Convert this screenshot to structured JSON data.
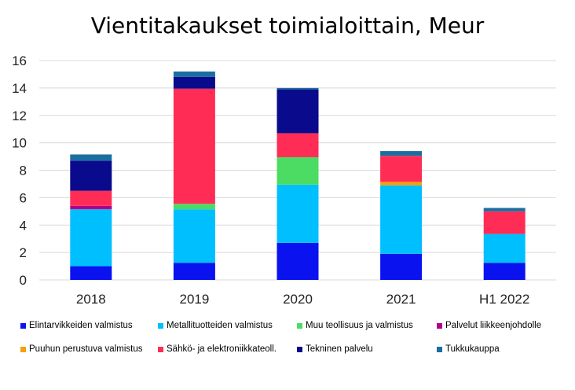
{
  "chart_data": {
    "type": "bar",
    "stacked": true,
    "title": "Vientitakaukset toimialoittain, Meur",
    "xlabel": "",
    "ylabel": "",
    "categories": [
      "2018",
      "2019",
      "2020",
      "2021",
      "H1 2022"
    ],
    "ylim": [
      0,
      16
    ],
    "yticks": [
      0,
      2,
      4,
      6,
      8,
      10,
      12,
      14,
      16
    ],
    "grid": true,
    "legend_position": "bottom",
    "series": [
      {
        "name": "Elintarvikkeiden valmistus",
        "color": "#0a12f0",
        "values": [
          1.0,
          1.25,
          2.7,
          1.9,
          1.25
        ]
      },
      {
        "name": "Metallituotteiden valmistus",
        "color": "#00bfff",
        "values": [
          4.15,
          3.9,
          4.25,
          5.0,
          2.1
        ]
      },
      {
        "name": "Muu teollisuus ja valmistus",
        "color": "#4cdc64",
        "values": [
          0.0,
          0.4,
          2.0,
          0.0,
          0.0
        ]
      },
      {
        "name": "Palvelut liikkeenjohdolle",
        "color": "#b0008a",
        "values": [
          0.25,
          0.0,
          0.0,
          0.0,
          0.0
        ]
      },
      {
        "name": "Puuhun perustuva valmistus",
        "color": "#f5a00a",
        "values": [
          0.0,
          0.0,
          0.0,
          0.25,
          0.0
        ]
      },
      {
        "name": "Sähkö- ja elektroniikkateoll.",
        "color": "#ff2d55",
        "values": [
          1.1,
          8.4,
          1.75,
          1.9,
          1.65
        ]
      },
      {
        "name": "Tekninen palvelu",
        "color": "#0a0a8c",
        "values": [
          2.2,
          0.85,
          3.2,
          0.0,
          0.0
        ]
      },
      {
        "name": "Tukkukauppa",
        "color": "#1a6fa0",
        "values": [
          0.45,
          0.4,
          0.1,
          0.35,
          0.25
        ]
      }
    ]
  }
}
